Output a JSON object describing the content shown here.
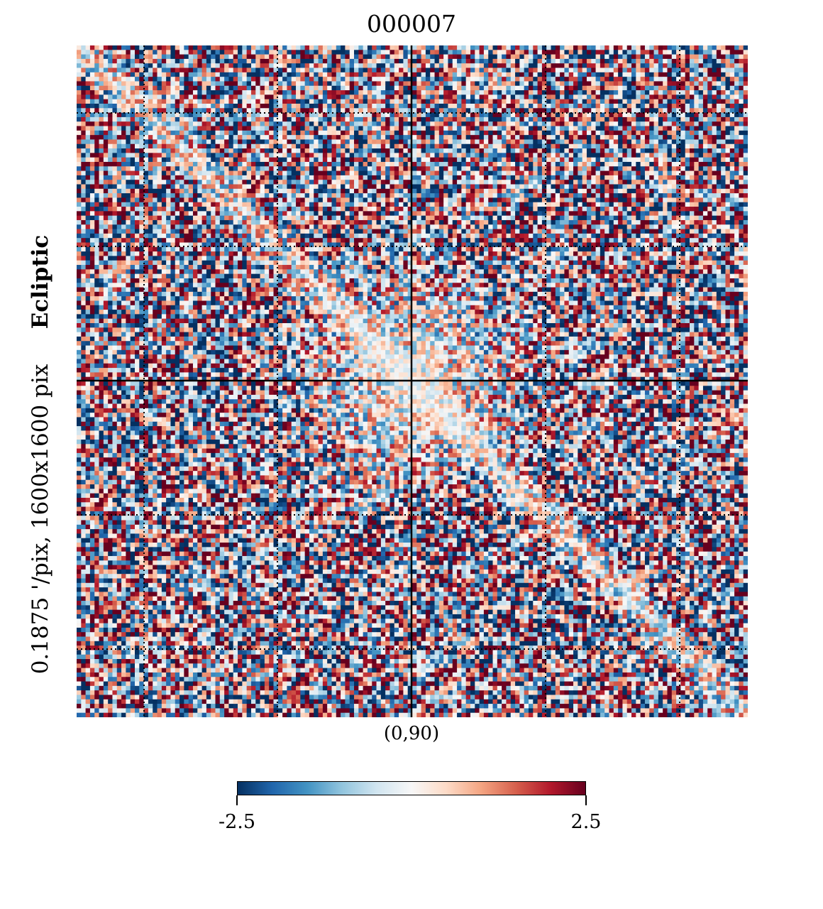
{
  "chart_data": {
    "type": "heatmap",
    "projection": "gnomonic",
    "title": "000007",
    "coord_system": "Ecliptic",
    "resolution_label": "0.1875 '/pix,   1600x1600 pix",
    "center_label": "(0,90)",
    "colormap": "RdBu_r",
    "colormap_colors": [
      "#053061",
      "#2166ac",
      "#4393c3",
      "#92c5de",
      "#d1e5f0",
      "#f7f7f7",
      "#fddbc7",
      "#f4a582",
      "#d6604d",
      "#b2182b",
      "#67001f"
    ],
    "value_range": [
      -2.5,
      2.5
    ],
    "colorbar": {
      "min_label": "-2.5",
      "max_label": "2.5"
    },
    "graticule": "dotted",
    "axes_lines": "solid black at center"
  }
}
